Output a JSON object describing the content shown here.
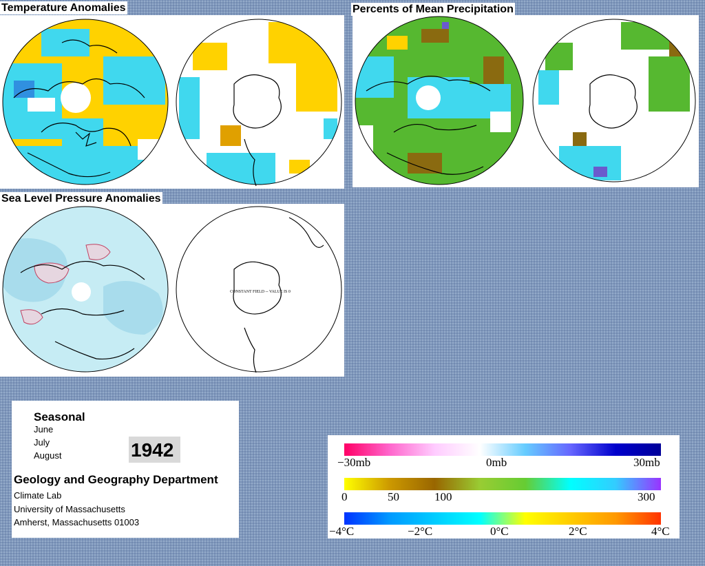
{
  "panels": {
    "temperature": {
      "title": "Temperature Anomalies"
    },
    "precipitation": {
      "title": "Percents of Mean Precipitation"
    },
    "pressure": {
      "title": "Sea Level Pressure Anomalies",
      "southern_note": "CONSTANT FIELD -- VALUE IS 0"
    }
  },
  "info": {
    "period_heading": "Seasonal",
    "months": [
      "June",
      "July",
      "August"
    ],
    "year": "1942",
    "department": "Geology and Geography Department",
    "lab": "Climate Lab",
    "university": "University of Massachusetts",
    "address": "Amherst, Massachusetts 01003"
  },
  "legend": {
    "pressure": {
      "labels": [
        "−30mb",
        "0mb",
        "30mb"
      ],
      "colors": [
        "#ff0066",
        "#ff66cc",
        "#ffccff",
        "#ffffff",
        "#66ccff",
        "#6666ff",
        "#0000cc",
        "#000099"
      ]
    },
    "precipitation": {
      "labels": [
        "0",
        "50",
        "100",
        "300"
      ],
      "colors": [
        "#ffff00",
        "#cc9900",
        "#996600",
        "#99cc33",
        "#66cc33",
        "#00ffff",
        "#33ccff",
        "#9933ff"
      ]
    },
    "temperature": {
      "labels": [
        "−4°C",
        "−2°C",
        "0°C",
        "2°C",
        "4°C"
      ],
      "colors": [
        "#0033ff",
        "#0099ff",
        "#00ccff",
        "#00ffff",
        "#ffff00",
        "#ffcc00",
        "#ff9900",
        "#ff3300"
      ]
    }
  },
  "map_colors": {
    "warm": "#ffd200",
    "cool": "#40d8ee",
    "dry": "#8a6a10",
    "wet": "#56b830",
    "pressure_low": "#c6ecf4",
    "pressure_high": "#e6d6e0",
    "coast": "#000000"
  }
}
